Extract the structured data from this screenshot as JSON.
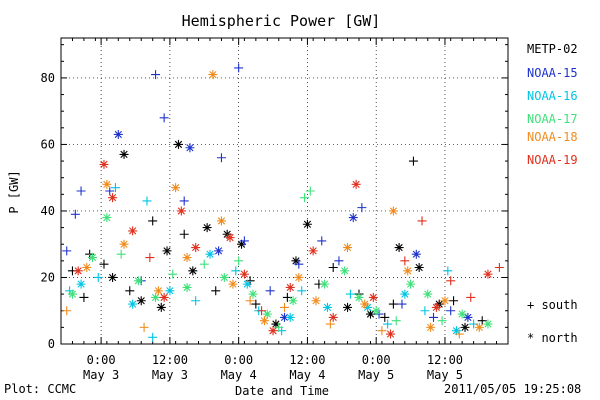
{
  "chart_data": {
    "type": "scatter",
    "title": "Hemispheric Power [GW]",
    "xlabel": "Date and Time",
    "ylabel": "P [GW]",
    "xlim": [
      "2011-05-02 17:00",
      "2011-05-05 23:00"
    ],
    "ylim": [
      0,
      92
    ],
    "yticks": [
      0,
      20,
      40,
      60,
      80
    ],
    "xticks": [
      {
        "t": "2011-05-03 00:00",
        "time": "0:00",
        "date": "May 3"
      },
      {
        "t": "2011-05-03 12:00",
        "time": "12:00",
        "date": "May 3"
      },
      {
        "t": "2011-05-04 00:00",
        "time": "0:00",
        "date": "May 4"
      },
      {
        "t": "2011-05-04 12:00",
        "time": "12:00",
        "date": "May 4"
      },
      {
        "t": "2011-05-05 00:00",
        "time": "0:00",
        "date": "May 5"
      },
      {
        "t": "2011-05-05 12:00",
        "time": "12:00",
        "date": "May 5"
      }
    ],
    "grid": true,
    "legend": "right",
    "series": [
      {
        "name": "METP-02",
        "color": "#000000",
        "points": [
          [
            "2011-05-02 19:00",
            22,
            "plus"
          ],
          [
            "2011-05-02 21:00",
            14,
            "plus"
          ],
          [
            "2011-05-02 22:00",
            27,
            "plus"
          ],
          [
            "2011-05-03 00:30",
            24,
            "plus"
          ],
          [
            "2011-05-03 02:00",
            20,
            "star"
          ],
          [
            "2011-05-03 04:00",
            57,
            "star"
          ],
          [
            "2011-05-03 05:00",
            16,
            "plus"
          ],
          [
            "2011-05-03 07:00",
            13,
            "star"
          ],
          [
            "2011-05-03 09:00",
            37,
            "plus"
          ],
          [
            "2011-05-03 10:30",
            11,
            "star"
          ],
          [
            "2011-05-03 11:30",
            28,
            "star"
          ],
          [
            "2011-05-03 13:30",
            60,
            "star"
          ],
          [
            "2011-05-03 14:30",
            33,
            "plus"
          ],
          [
            "2011-05-03 16:00",
            22,
            "star"
          ],
          [
            "2011-05-03 18:30",
            35,
            "star"
          ],
          [
            "2011-05-03 20:00",
            16,
            "plus"
          ],
          [
            "2011-05-03 22:00",
            33,
            "star"
          ],
          [
            "2011-05-04 00:30",
            30,
            "star"
          ],
          [
            "2011-05-04 02:00",
            19,
            "plus"
          ],
          [
            "2011-05-04 03:00",
            12,
            "plus"
          ],
          [
            "2011-05-04 06:30",
            6,
            "star"
          ],
          [
            "2011-05-04 08:30",
            14,
            "plus"
          ],
          [
            "2011-05-04 10:00",
            25,
            "star"
          ],
          [
            "2011-05-04 12:00",
            36,
            "star"
          ],
          [
            "2011-05-04 14:00",
            18,
            "plus"
          ],
          [
            "2011-05-04 16:30",
            23,
            "plus"
          ],
          [
            "2011-05-04 19:00",
            11,
            "star"
          ],
          [
            "2011-05-04 21:00",
            15,
            "plus"
          ],
          [
            "2011-05-04 23:00",
            9,
            "star"
          ],
          [
            "2011-05-05 01:30",
            8,
            "plus"
          ],
          [
            "2011-05-05 03:00",
            12,
            "plus"
          ],
          [
            "2011-05-05 04:00",
            29,
            "star"
          ],
          [
            "2011-05-05 06:30",
            55,
            "plus"
          ],
          [
            "2011-05-05 07:30",
            23,
            "star"
          ],
          [
            "2011-05-05 11:00",
            12,
            "star"
          ],
          [
            "2011-05-05 13:30",
            13,
            "plus"
          ],
          [
            "2011-05-05 15:30",
            5,
            "star"
          ],
          [
            "2011-05-05 18:30",
            7,
            "plus"
          ]
        ]
      },
      {
        "name": "NOAA-15",
        "color": "#1f33cc",
        "points": [
          [
            "2011-05-02 18:00",
            28,
            "plus"
          ],
          [
            "2011-05-02 19:30",
            39,
            "plus"
          ],
          [
            "2011-05-02 20:30",
            46,
            "plus"
          ],
          [
            "2011-05-03 01:30",
            46,
            "plus"
          ],
          [
            "2011-05-03 03:00",
            63,
            "star"
          ],
          [
            "2011-05-03 07:00",
            19,
            "plus"
          ],
          [
            "2011-05-03 09:30",
            81,
            "plus"
          ],
          [
            "2011-05-03 11:00",
            68,
            "plus"
          ],
          [
            "2011-05-03 14:30",
            43,
            "plus"
          ],
          [
            "2011-05-03 15:30",
            59,
            "star"
          ],
          [
            "2011-05-03 21:00",
            56,
            "plus"
          ],
          [
            "2011-05-03 20:30",
            28,
            "star"
          ],
          [
            "2011-05-04 00:00",
            83,
            "plus"
          ],
          [
            "2011-05-04 01:00",
            31,
            "plus"
          ],
          [
            "2011-05-04 05:30",
            16,
            "plus"
          ],
          [
            "2011-05-04 08:00",
            8,
            "star"
          ],
          [
            "2011-05-04 10:30",
            24,
            "plus"
          ],
          [
            "2011-05-04 14:30",
            31,
            "plus"
          ],
          [
            "2011-05-04 17:30",
            25,
            "plus"
          ],
          [
            "2011-05-04 20:00",
            38,
            "star"
          ],
          [
            "2011-05-04 21:30",
            41,
            "plus"
          ],
          [
            "2011-05-05 00:30",
            9,
            "plus"
          ],
          [
            "2011-05-05 04:30",
            12,
            "plus"
          ],
          [
            "2011-05-05 07:00",
            27,
            "star"
          ],
          [
            "2011-05-05 10:00",
            8,
            "plus"
          ],
          [
            "2011-05-05 13:00",
            10,
            "plus"
          ],
          [
            "2011-05-05 16:00",
            8,
            "star"
          ]
        ]
      },
      {
        "name": "NOAA-16",
        "color": "#00c4e4",
        "points": [
          [
            "2011-05-02 18:30",
            16,
            "plus"
          ],
          [
            "2011-05-02 20:30",
            18,
            "star"
          ],
          [
            "2011-05-02 23:30",
            20,
            "plus"
          ],
          [
            "2011-05-03 02:30",
            47,
            "plus"
          ],
          [
            "2011-05-03 05:30",
            12,
            "star"
          ],
          [
            "2011-05-03 08:00",
            43,
            "plus"
          ],
          [
            "2011-05-03 09:00",
            2,
            "plus"
          ],
          [
            "2011-05-03 12:00",
            16,
            "star"
          ],
          [
            "2011-05-03 16:30",
            13,
            "plus"
          ],
          [
            "2011-05-03 19:00",
            27,
            "star"
          ],
          [
            "2011-05-03 23:30",
            22,
            "plus"
          ],
          [
            "2011-05-04 01:30",
            18,
            "star"
          ],
          [
            "2011-05-04 03:30",
            10,
            "plus"
          ],
          [
            "2011-05-04 07:30",
            4,
            "plus"
          ],
          [
            "2011-05-04 09:00",
            8,
            "star"
          ],
          [
            "2011-05-04 11:00",
            16,
            "plus"
          ],
          [
            "2011-05-04 15:30",
            11,
            "star"
          ],
          [
            "2011-05-04 19:30",
            15,
            "plus"
          ],
          [
            "2011-05-04 22:30",
            11,
            "star"
          ],
          [
            "2011-05-05 02:00",
            6,
            "plus"
          ],
          [
            "2011-05-05 05:00",
            15,
            "star"
          ],
          [
            "2011-05-05 08:30",
            10,
            "plus"
          ],
          [
            "2011-05-05 12:30",
            22,
            "plus"
          ],
          [
            "2011-05-05 14:00",
            4,
            "star"
          ],
          [
            "2011-05-05 17:00",
            6,
            "plus"
          ]
        ]
      },
      {
        "name": "NOAA-17",
        "color": "#3fe07a",
        "points": [
          [
            "2011-05-02 19:00",
            15,
            "star"
          ],
          [
            "2011-05-02 22:30",
            26,
            "star"
          ],
          [
            "2011-05-03 01:00",
            38,
            "star"
          ],
          [
            "2011-05-03 03:30",
            27,
            "plus"
          ],
          [
            "2011-05-03 06:30",
            19,
            "star"
          ],
          [
            "2011-05-03 09:30",
            14,
            "star"
          ],
          [
            "2011-05-03 12:30",
            21,
            "plus"
          ],
          [
            "2011-05-03 15:00",
            17,
            "star"
          ],
          [
            "2011-05-03 18:00",
            24,
            "plus"
          ],
          [
            "2011-05-03 21:30",
            20,
            "star"
          ],
          [
            "2011-05-04 00:00",
            25,
            "plus"
          ],
          [
            "2011-05-04 02:30",
            15,
            "star"
          ],
          [
            "2011-05-04 05:00",
            9,
            "star"
          ],
          [
            "2011-05-04 07:00",
            5,
            "plus"
          ],
          [
            "2011-05-04 09:30",
            13,
            "star"
          ],
          [
            "2011-05-04 11:30",
            44,
            "plus"
          ],
          [
            "2011-05-04 12:30",
            46,
            "plus"
          ],
          [
            "2011-05-04 15:00",
            18,
            "star"
          ],
          [
            "2011-05-04 18:30",
            22,
            "star"
          ],
          [
            "2011-05-04 21:00",
            14,
            "star"
          ],
          [
            "2011-05-05 00:00",
            10,
            "star"
          ],
          [
            "2011-05-05 03:30",
            7,
            "plus"
          ],
          [
            "2011-05-05 06:00",
            18,
            "star"
          ],
          [
            "2011-05-05 09:00",
            15,
            "star"
          ],
          [
            "2011-05-05 11:30",
            7,
            "plus"
          ],
          [
            "2011-05-05 15:00",
            9,
            "star"
          ],
          [
            "2011-05-05 19:30",
            6,
            "star"
          ]
        ]
      },
      {
        "name": "NOAA-18",
        "color": "#f08c1e",
        "points": [
          [
            "2011-05-02 18:00",
            10,
            "plus"
          ],
          [
            "2011-05-02 21:30",
            23,
            "star"
          ],
          [
            "2011-05-03 01:00",
            48,
            "star"
          ],
          [
            "2011-05-03 04:00",
            30,
            "star"
          ],
          [
            "2011-05-03 07:30",
            5,
            "plus"
          ],
          [
            "2011-05-03 10:00",
            16,
            "star"
          ],
          [
            "2011-05-03 13:00",
            47,
            "star"
          ],
          [
            "2011-05-03 15:00",
            26,
            "star"
          ],
          [
            "2011-05-03 19:30",
            81,
            "star"
          ],
          [
            "2011-05-03 21:00",
            37,
            "star"
          ],
          [
            "2011-05-03 23:00",
            18,
            "star"
          ],
          [
            "2011-05-04 02:00",
            13,
            "plus"
          ],
          [
            "2011-05-04 04:30",
            7,
            "star"
          ],
          [
            "2011-05-04 08:00",
            11,
            "plus"
          ],
          [
            "2011-05-04 10:30",
            20,
            "star"
          ],
          [
            "2011-05-04 13:30",
            13,
            "star"
          ],
          [
            "2011-05-04 16:00",
            6,
            "plus"
          ],
          [
            "2011-05-04 19:00",
            29,
            "star"
          ],
          [
            "2011-05-04 22:00",
            12,
            "star"
          ],
          [
            "2011-05-05 01:00",
            4,
            "plus"
          ],
          [
            "2011-05-05 03:00",
            40,
            "star"
          ],
          [
            "2011-05-05 05:30",
            22,
            "star"
          ],
          [
            "2011-05-05 09:30",
            5,
            "star"
          ],
          [
            "2011-05-05 12:00",
            13,
            "star"
          ],
          [
            "2011-05-05 14:30",
            3,
            "plus"
          ],
          [
            "2011-05-05 18:00",
            5,
            "star"
          ]
        ]
      },
      {
        "name": "NOAA-19",
        "color": "#e0301e",
        "points": [
          [
            "2011-05-02 20:00",
            22,
            "star"
          ],
          [
            "2011-05-03 00:30",
            54,
            "star"
          ],
          [
            "2011-05-03 02:00",
            44,
            "star"
          ],
          [
            "2011-05-03 05:30",
            34,
            "star"
          ],
          [
            "2011-05-03 08:30",
            26,
            "plus"
          ],
          [
            "2011-05-03 11:00",
            14,
            "star"
          ],
          [
            "2011-05-03 14:00",
            40,
            "star"
          ],
          [
            "2011-05-03 16:30",
            29,
            "star"
          ],
          [
            "2011-05-03 22:30",
            32,
            "star"
          ],
          [
            "2011-05-04 01:00",
            21,
            "star"
          ],
          [
            "2011-05-04 04:00",
            10,
            "plus"
          ],
          [
            "2011-05-04 06:00",
            4,
            "star"
          ],
          [
            "2011-05-04 09:00",
            17,
            "star"
          ],
          [
            "2011-05-04 13:00",
            28,
            "star"
          ],
          [
            "2011-05-04 16:30",
            8,
            "star"
          ],
          [
            "2011-05-04 20:30",
            48,
            "star"
          ],
          [
            "2011-05-04 23:30",
            14,
            "star"
          ],
          [
            "2011-05-05 02:30",
            3,
            "star"
          ],
          [
            "2011-05-05 05:00",
            25,
            "plus"
          ],
          [
            "2011-05-05 08:00",
            37,
            "plus"
          ],
          [
            "2011-05-05 10:30",
            11,
            "star"
          ],
          [
            "2011-05-05 13:00",
            19,
            "plus"
          ],
          [
            "2011-05-05 16:30",
            14,
            "plus"
          ],
          [
            "2011-05-05 19:30",
            21,
            "star"
          ],
          [
            "2011-05-05 21:30",
            23,
            "plus"
          ]
        ]
      }
    ],
    "symbols": {
      "plus": "+ south",
      "star": "* north"
    }
  },
  "footer": {
    "plot_credit": "Plot: CCMC",
    "timestamp": "2011/05/05 19:25:08"
  }
}
